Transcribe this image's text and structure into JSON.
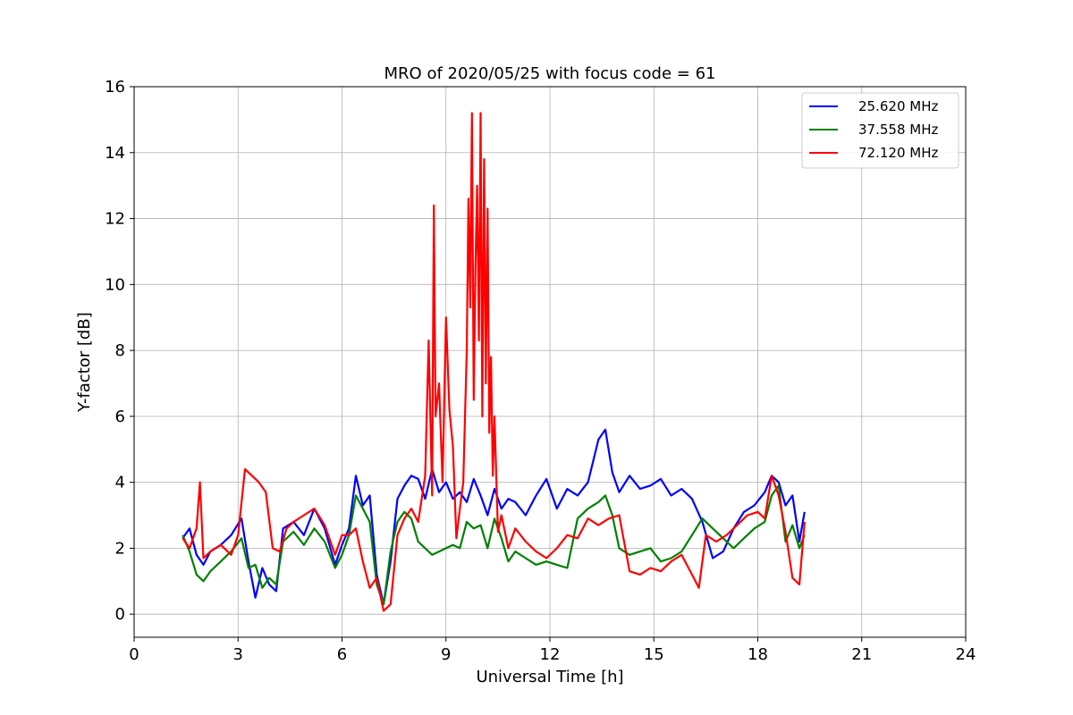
{
  "chart_data": {
    "type": "line",
    "title": "MRO of 2020/05/25 with focus code = 61",
    "xlabel": "Universal Time [h]",
    "ylabel": "Y-factor [dB]",
    "xlim": [
      0,
      24
    ],
    "ylim": [
      -0.7,
      16
    ],
    "xticks": [
      0,
      3,
      6,
      9,
      12,
      15,
      18,
      21,
      24
    ],
    "yticks": [
      0,
      2,
      4,
      6,
      8,
      10,
      12,
      14,
      16
    ],
    "grid": true,
    "legend_position": "top-right",
    "series": [
      {
        "name": "25.620 MHz",
        "color": "#0000ff",
        "x": [
          1.4,
          1.6,
          1.8,
          2.0,
          2.2,
          2.5,
          2.8,
          3.1,
          3.3,
          3.5,
          3.7,
          3.9,
          4.1,
          4.3,
          4.6,
          4.9,
          5.2,
          5.5,
          5.8,
          6.0,
          6.2,
          6.4,
          6.6,
          6.8,
          7.0,
          7.2,
          7.4,
          7.6,
          7.8,
          8.0,
          8.2,
          8.4,
          8.6,
          8.8,
          9.0,
          9.2,
          9.4,
          9.6,
          9.8,
          10.0,
          10.2,
          10.4,
          10.6,
          10.8,
          11.0,
          11.3,
          11.6,
          11.9,
          12.2,
          12.5,
          12.8,
          13.1,
          13.4,
          13.6,
          13.8,
          14.0,
          14.3,
          14.6,
          14.9,
          15.2,
          15.5,
          15.8,
          16.1,
          16.4,
          16.7,
          17.0,
          17.3,
          17.6,
          17.9,
          18.2,
          18.4,
          18.6,
          18.8,
          19.0,
          19.2,
          19.35
        ],
        "y": [
          2.3,
          2.6,
          1.8,
          1.5,
          1.9,
          2.1,
          2.4,
          2.9,
          1.6,
          0.5,
          1.4,
          0.9,
          0.7,
          2.6,
          2.8,
          2.4,
          3.2,
          2.6,
          1.5,
          2.1,
          2.6,
          4.2,
          3.3,
          3.6,
          1.2,
          0.3,
          1.6,
          3.5,
          3.9,
          4.2,
          4.1,
          3.5,
          4.4,
          3.7,
          4.0,
          3.5,
          3.7,
          3.4,
          4.1,
          3.6,
          3.0,
          3.8,
          3.2,
          3.5,
          3.4,
          3.0,
          3.6,
          4.1,
          3.2,
          3.8,
          3.6,
          4.0,
          5.3,
          5.6,
          4.3,
          3.7,
          4.2,
          3.8,
          3.9,
          4.1,
          3.6,
          3.8,
          3.5,
          2.8,
          1.7,
          1.9,
          2.6,
          3.1,
          3.3,
          3.7,
          4.2,
          4.0,
          3.3,
          3.6,
          2.2,
          3.1
        ]
      },
      {
        "name": "37.558 MHz",
        "color": "#008000",
        "x": [
          1.4,
          1.6,
          1.8,
          2.0,
          2.2,
          2.5,
          2.8,
          3.1,
          3.3,
          3.5,
          3.7,
          3.9,
          4.1,
          4.3,
          4.6,
          4.9,
          5.2,
          5.5,
          5.8,
          6.0,
          6.2,
          6.4,
          6.6,
          6.8,
          7.0,
          7.2,
          7.4,
          7.6,
          7.8,
          8.0,
          8.2,
          8.4,
          8.6,
          8.8,
          9.0,
          9.2,
          9.4,
          9.6,
          9.8,
          10.0,
          10.2,
          10.4,
          10.6,
          10.8,
          11.0,
          11.3,
          11.6,
          11.9,
          12.2,
          12.5,
          12.8,
          13.1,
          13.4,
          13.6,
          13.8,
          14.0,
          14.3,
          14.6,
          14.9,
          15.2,
          15.5,
          15.8,
          16.1,
          16.4,
          16.7,
          17.0,
          17.3,
          17.6,
          17.9,
          18.2,
          18.4,
          18.6,
          18.8,
          19.0,
          19.2,
          19.35
        ],
        "y": [
          2.4,
          1.9,
          1.2,
          1.0,
          1.3,
          1.6,
          1.9,
          2.3,
          1.4,
          1.5,
          0.8,
          1.1,
          0.9,
          2.2,
          2.5,
          2.1,
          2.6,
          2.2,
          1.4,
          1.8,
          2.4,
          3.6,
          3.2,
          2.8,
          0.9,
          0.3,
          1.9,
          2.8,
          3.1,
          2.9,
          2.2,
          2.0,
          1.8,
          1.9,
          2.0,
          2.1,
          2.0,
          2.8,
          2.6,
          2.7,
          2.0,
          2.9,
          2.3,
          1.6,
          1.9,
          1.7,
          1.5,
          1.6,
          1.5,
          1.4,
          2.9,
          3.2,
          3.4,
          3.6,
          3.0,
          2.0,
          1.8,
          1.9,
          2.0,
          1.6,
          1.7,
          1.9,
          2.4,
          2.9,
          2.6,
          2.3,
          2.0,
          2.3,
          2.6,
          2.8,
          3.6,
          3.9,
          2.2,
          2.7,
          2.0,
          2.4
        ]
      },
      {
        "name": "72.120 MHz",
        "color": "#ff0000",
        "x": [
          1.4,
          1.6,
          1.8,
          1.9,
          2.0,
          2.2,
          2.5,
          2.8,
          3.0,
          3.2,
          3.4,
          3.6,
          3.8,
          4.0,
          4.2,
          4.4,
          4.6,
          4.9,
          5.2,
          5.5,
          5.8,
          6.0,
          6.2,
          6.4,
          6.6,
          6.8,
          7.0,
          7.2,
          7.4,
          7.6,
          7.8,
          8.0,
          8.2,
          8.4,
          8.5,
          8.6,
          8.65,
          8.7,
          8.8,
          8.9,
          9.0,
          9.1,
          9.2,
          9.3,
          9.4,
          9.5,
          9.6,
          9.65,
          9.7,
          9.75,
          9.8,
          9.85,
          9.9,
          9.95,
          10.0,
          10.05,
          10.1,
          10.15,
          10.2,
          10.25,
          10.3,
          10.35,
          10.4,
          10.5,
          10.6,
          10.8,
          11.0,
          11.3,
          11.6,
          11.9,
          12.2,
          12.5,
          12.8,
          13.1,
          13.4,
          13.7,
          14.0,
          14.3,
          14.6,
          14.9,
          15.2,
          15.5,
          15.8,
          16.1,
          16.3,
          16.5,
          16.8,
          17.1,
          17.4,
          17.7,
          18.0,
          18.2,
          18.4,
          18.6,
          18.8,
          19.0,
          19.2,
          19.35
        ],
        "y": [
          2.3,
          2.0,
          2.6,
          4.0,
          1.7,
          1.9,
          2.1,
          1.8,
          2.4,
          4.4,
          4.2,
          4.0,
          3.7,
          2.0,
          1.9,
          2.6,
          2.8,
          3.0,
          3.2,
          2.7,
          1.8,
          2.4,
          2.4,
          2.6,
          1.6,
          0.8,
          1.1,
          0.1,
          0.3,
          2.4,
          2.9,
          3.2,
          2.8,
          4.2,
          8.3,
          3.6,
          12.4,
          6.0,
          7.0,
          4.0,
          9.0,
          6.2,
          5.1,
          2.3,
          3.2,
          4.0,
          8.0,
          12.6,
          9.3,
          15.2,
          6.5,
          10.5,
          13.0,
          8.3,
          15.2,
          6.0,
          13.8,
          7.0,
          12.3,
          5.5,
          7.8,
          4.2,
          6.0,
          2.5,
          3.0,
          2.0,
          2.6,
          2.2,
          1.9,
          1.7,
          2.0,
          2.4,
          2.3,
          2.9,
          2.7,
          2.9,
          3.0,
          1.3,
          1.2,
          1.4,
          1.3,
          1.6,
          1.8,
          1.2,
          0.8,
          2.4,
          2.2,
          2.4,
          2.7,
          3.0,
          3.1,
          2.9,
          4.2,
          3.6,
          2.5,
          1.1,
          0.9,
          2.8
        ]
      }
    ]
  }
}
